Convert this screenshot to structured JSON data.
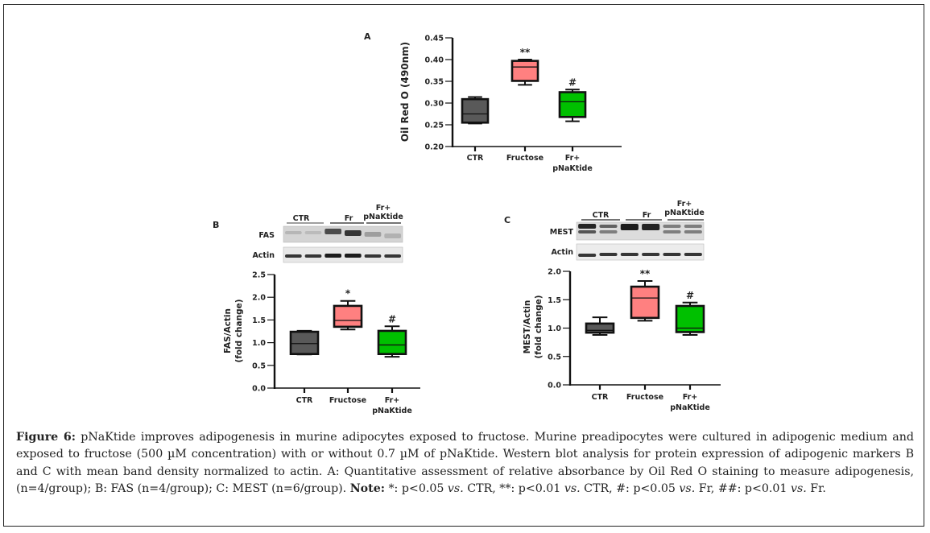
{
  "figure": {
    "panel_letters": {
      "A": "A",
      "B": "B",
      "C": "C"
    },
    "colors": {
      "CTR": "#595959",
      "Fructose": "#ff8080",
      "Fr_pNaKtide": "#00c000",
      "axis": "#111111"
    }
  },
  "blots": {
    "B": {
      "groups": [
        "CTR",
        "Fr",
        "Fr+",
        "pNaKtide"
      ],
      "rows": [
        "FAS",
        "Actin"
      ]
    },
    "C": {
      "groups": [
        "CTR",
        "Fr",
        "Fr+",
        "pNaKtide"
      ],
      "rows": [
        "MEST",
        "Actin"
      ]
    }
  },
  "chart_data": [
    {
      "panel": "A",
      "type": "boxplot",
      "title": "",
      "ylabel": "Oil Red O (490nm)",
      "xlabel": "",
      "ylim": [
        0.2,
        0.45
      ],
      "yticks": [
        "0.20",
        "0.25",
        "0.30",
        "0.35",
        "0.40",
        "0.45"
      ],
      "yticks_values": [
        0.2,
        0.25,
        0.3,
        0.35,
        0.4,
        0.45
      ],
      "categories": [
        "CTR",
        "Fructose",
        "Fr+ pNaKtide"
      ],
      "category_lines": [
        [
          "CTR"
        ],
        [
          "Fructose"
        ],
        [
          "Fr+",
          "pNaKtide"
        ]
      ],
      "boxes": [
        {
          "min": 0.253,
          "q1": 0.255,
          "median": 0.275,
          "q3": 0.309,
          "max": 0.314
        },
        {
          "min": 0.342,
          "q1": 0.351,
          "median": 0.383,
          "q3": 0.397,
          "max": 0.4
        },
        {
          "min": 0.258,
          "q1": 0.268,
          "median": 0.303,
          "q3": 0.325,
          "max": 0.331
        }
      ],
      "annotations": [
        "",
        "**",
        "#"
      ]
    },
    {
      "panel": "B",
      "type": "boxplot",
      "title": "",
      "ylabel": "FAS/Actin",
      "ylabel2": "(fold change)",
      "xlabel": "",
      "ylim": [
        0.0,
        2.5
      ],
      "yticks": [
        "0.0",
        "0.5",
        "1.0",
        "1.5",
        "2.0",
        "2.5"
      ],
      "yticks_values": [
        0.0,
        0.5,
        1.0,
        1.5,
        2.0,
        2.5
      ],
      "categories": [
        "CTR",
        "Fructose",
        "Fr+ pNaKtide"
      ],
      "category_lines": [
        [
          "CTR"
        ],
        [
          "Fructose"
        ],
        [
          "Fr+",
          "pNaKtide"
        ]
      ],
      "boxes": [
        {
          "min": 0.74,
          "q1": 0.75,
          "median": 0.98,
          "q3": 1.24,
          "max": 1.26
        },
        {
          "min": 1.29,
          "q1": 1.35,
          "median": 1.49,
          "q3": 1.81,
          "max": 1.92
        },
        {
          "min": 0.69,
          "q1": 0.75,
          "median": 0.95,
          "q3": 1.26,
          "max": 1.36
        }
      ],
      "annotations": [
        "",
        "*",
        "#"
      ]
    },
    {
      "panel": "C",
      "type": "boxplot",
      "title": "",
      "ylabel": "MEST/Actin",
      "ylabel2": "(fold change)",
      "xlabel": "",
      "ylim": [
        0.0,
        2.0
      ],
      "yticks": [
        "0.0",
        "0.5",
        "1.0",
        "1.5",
        "2.0"
      ],
      "yticks_values": [
        0.0,
        0.5,
        1.0,
        1.5,
        2.0
      ],
      "categories": [
        "CTR",
        "Fructose",
        "Fr+ pNaKtide"
      ],
      "category_lines": [
        [
          "CTR"
        ],
        [
          "Fructose"
        ],
        [
          "Fr+",
          "pNaKtide"
        ]
      ],
      "boxes": [
        {
          "min": 0.88,
          "q1": 0.92,
          "median": 0.96,
          "q3": 1.08,
          "max": 1.19
        },
        {
          "min": 1.13,
          "q1": 1.18,
          "median": 1.53,
          "q3": 1.73,
          "max": 1.83
        },
        {
          "min": 0.88,
          "q1": 0.93,
          "median": 1.0,
          "q3": 1.39,
          "max": 1.45
        }
      ],
      "annotations": [
        "",
        "**",
        "#"
      ]
    }
  ],
  "caption": {
    "label": "Figure 6:",
    "text": " pNaKtide improves adipogenesis in murine adipocytes exposed to fructose. Murine preadipocytes were cultured in adipogenic medium and exposed to fructose (500 µM concentration) with or without 0.7 µM of pNaKtide. Western blot analysis for protein expression of adipogenic markers B and C with mean band density normalized to actin. A: Quantitative assessment of relative absorbance by Oil Red O staining to measure adipogenesis, (n=4/group); B: FAS (n=4/group); C: MEST (n=6/group). ",
    "note_label": "Note:",
    "note_parts": [
      " *: p<0.05 ",
      "vs.",
      " CTR, **: p<0.01 ",
      "vs.",
      " CTR, #: p<0.05 ",
      "vs.",
      " Fr, ##: p<0.01 ",
      "vs.",
      " Fr."
    ]
  }
}
